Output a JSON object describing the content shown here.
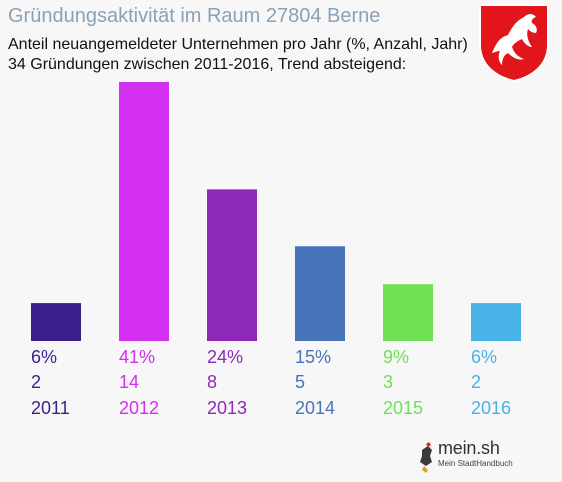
{
  "header": {
    "title": "Gründungsaktivität im Raum 27804 Berne",
    "subtitle_line1": "Anteil neuangemeldeter Unternehmen pro Jahr (%, Anzahl, Jahr)",
    "subtitle_line2": "34 Gründungen zwischen 2011-2016, Trend absteigend:"
  },
  "crest": {
    "icon": "lower-saxony-horse-crest-icon",
    "color": "#e2161a"
  },
  "brand": {
    "name": "mein.sh",
    "tagline": "Mein StadtHandbuch"
  },
  "chart_data": {
    "type": "bar",
    "title": "Gründungsaktivität im Raum 27804 Berne",
    "categories": [
      "2011",
      "2012",
      "2013",
      "2014",
      "2015",
      "2016"
    ],
    "values": [
      6,
      41,
      24,
      15,
      9,
      6
    ],
    "counts": [
      2,
      14,
      8,
      5,
      3,
      2
    ],
    "percent_labels": [
      "6%",
      "41%",
      "24%",
      "15%",
      "9%",
      "6%"
    ],
    "count_labels": [
      "2",
      "14",
      "8",
      "5",
      "3",
      "2"
    ],
    "colors": [
      "#3a1f8c",
      "#d22ff0",
      "#8e28b6",
      "#4774b9",
      "#6ee155",
      "#48b1e6"
    ],
    "ylim": [
      0,
      41
    ],
    "grid": false,
    "legend": "none"
  }
}
